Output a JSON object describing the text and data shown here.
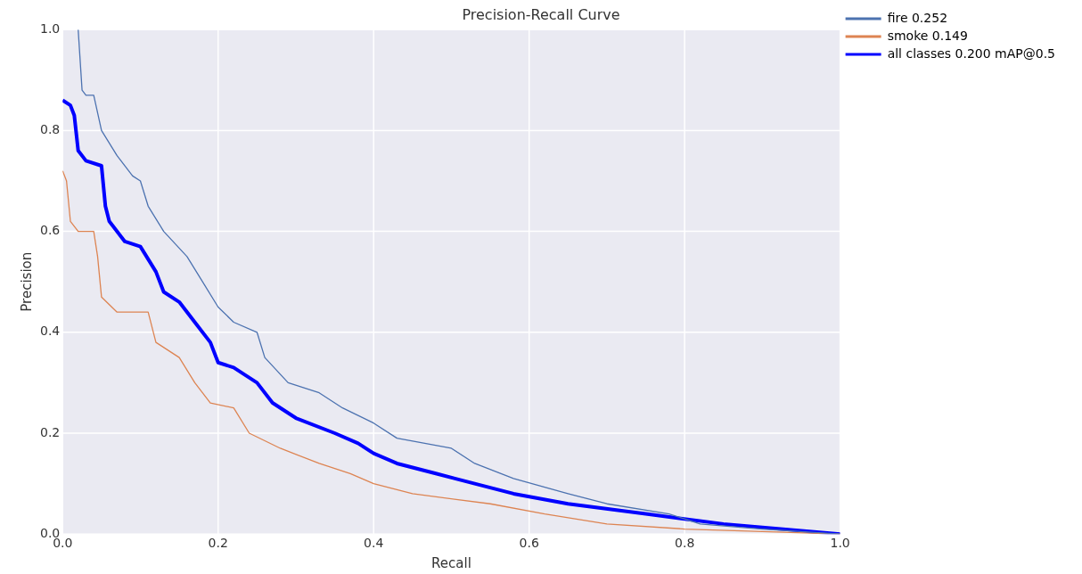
{
  "chart_data": {
    "type": "line",
    "title": "Precision-Recall Curve",
    "xlabel": "Recall",
    "ylabel": "Precision",
    "xlim": [
      0,
      1
    ],
    "ylim": [
      0,
      1
    ],
    "xticks": [
      {
        "value": 0,
        "label": "0.0"
      },
      0.2,
      0.4,
      0.6,
      0.8,
      {
        "value": 1,
        "label": "1.0"
      }
    ],
    "yticks": [
      {
        "value": 0,
        "label": "0.0"
      },
      0.2,
      0.4,
      0.6,
      0.8,
      {
        "value": 1,
        "label": "1.0"
      }
    ],
    "grid": true,
    "legend": "top right",
    "marker": "none",
    "series": [
      {
        "name": "fire 0.252",
        "color": "#4c72b0",
        "x": [
          0.02,
          0.025,
          0.03,
          0.04,
          0.05,
          0.07,
          0.09,
          0.1,
          0.11,
          0.13,
          0.16,
          0.18,
          0.2,
          0.22,
          0.25,
          0.26,
          0.29,
          0.33,
          0.36,
          0.4,
          0.43,
          0.5,
          0.53,
          0.58,
          0.65,
          0.7,
          0.78,
          0.82,
          0.9,
          1.0
        ],
        "values": [
          1.0,
          0.88,
          0.87,
          0.87,
          0.8,
          0.75,
          0.71,
          0.7,
          0.65,
          0.6,
          0.55,
          0.5,
          0.45,
          0.42,
          0.4,
          0.35,
          0.3,
          0.28,
          0.25,
          0.22,
          0.19,
          0.17,
          0.14,
          0.11,
          0.08,
          0.06,
          0.04,
          0.02,
          0.01,
          0
        ]
      },
      {
        "name": "smoke 0.149",
        "color": "#dd8452",
        "x": [
          0,
          0.005,
          0.01,
          0.02,
          0.04,
          0.045,
          0.05,
          0.07,
          0.11,
          0.12,
          0.15,
          0.17,
          0.19,
          0.22,
          0.24,
          0.28,
          0.33,
          0.37,
          0.4,
          0.45,
          0.55,
          0.62,
          0.7,
          0.8,
          1.0
        ],
        "values": [
          0.72,
          0.7,
          0.62,
          0.6,
          0.6,
          0.55,
          0.47,
          0.44,
          0.44,
          0.38,
          0.35,
          0.3,
          0.26,
          0.25,
          0.2,
          0.17,
          0.14,
          0.12,
          0.1,
          0.08,
          0.06,
          0.04,
          0.02,
          0.01,
          0
        ]
      },
      {
        "name": "all classes 0.200 mAP@0.5",
        "color": "#0000ff",
        "x": [
          0,
          0.01,
          0.015,
          0.02,
          0.03,
          0.05,
          0.055,
          0.06,
          0.08,
          0.1,
          0.12,
          0.13,
          0.15,
          0.17,
          0.19,
          0.2,
          0.22,
          0.25,
          0.27,
          0.3,
          0.35,
          0.38,
          0.4,
          0.43,
          0.48,
          0.53,
          0.58,
          0.65,
          0.75,
          0.85,
          1.0
        ],
        "values": [
          0.86,
          0.85,
          0.83,
          0.76,
          0.74,
          0.73,
          0.65,
          0.62,
          0.58,
          0.57,
          0.52,
          0.48,
          0.46,
          0.42,
          0.38,
          0.34,
          0.33,
          0.3,
          0.26,
          0.23,
          0.2,
          0.18,
          0.16,
          0.14,
          0.12,
          0.1,
          0.08,
          0.06,
          0.04,
          0.02,
          0
        ]
      }
    ]
  }
}
